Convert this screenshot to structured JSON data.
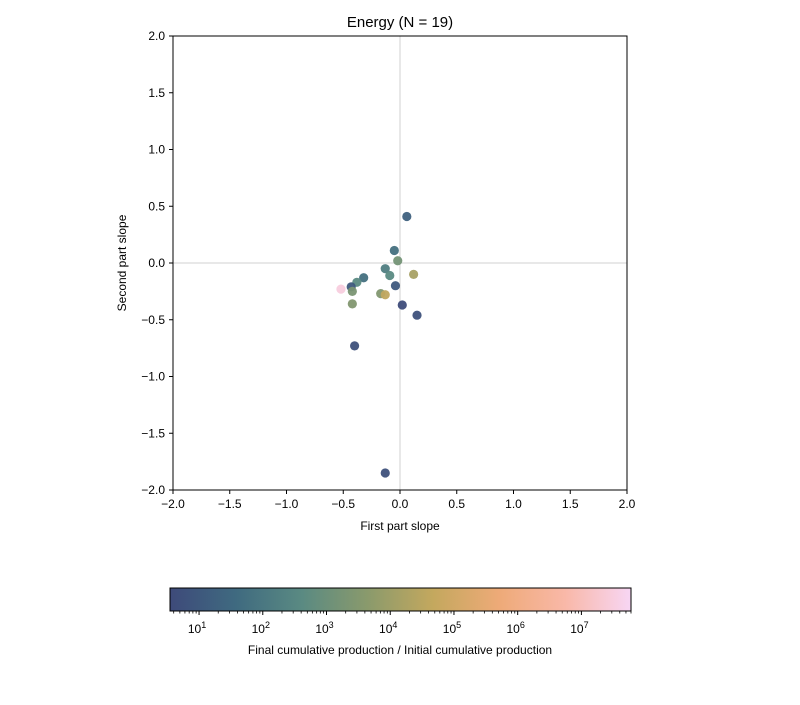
{
  "chart_data": {
    "type": "scatter",
    "title": "Energy (N = 19)",
    "xlabel": "First part slope",
    "ylabel": "Second part slope",
    "xlim": [
      -2.0,
      2.0
    ],
    "ylim": [
      -2.0,
      2.0
    ],
    "xticks": [
      "−2.0",
      "−1.5",
      "−1.0",
      "−0.5",
      "0.0",
      "0.5",
      "1.0",
      "1.5",
      "2.0"
    ],
    "yticks": [
      "2.0",
      "1.5",
      "1.0",
      "0.5",
      "0.0",
      "−0.5",
      "−1.0",
      "−1.5",
      "−2.0"
    ],
    "reference_lines": {
      "x": 0,
      "y": 0
    },
    "grid": false,
    "points": [
      {
        "x": 0.06,
        "y": 0.41,
        "c": 20
      },
      {
        "x": -0.05,
        "y": 0.11,
        "c": 60
      },
      {
        "x": -0.02,
        "y": 0.02,
        "c": 1500
      },
      {
        "x": -0.13,
        "y": -0.05,
        "c": 150
      },
      {
        "x": -0.09,
        "y": -0.11,
        "c": 400
      },
      {
        "x": 0.12,
        "y": -0.1,
        "c": 15000
      },
      {
        "x": -0.32,
        "y": -0.13,
        "c": 60
      },
      {
        "x": -0.38,
        "y": -0.17,
        "c": 400
      },
      {
        "x": -0.43,
        "y": -0.21,
        "c": 10
      },
      {
        "x": -0.04,
        "y": -0.2,
        "c": 10
      },
      {
        "x": -0.42,
        "y": -0.25,
        "c": 2000
      },
      {
        "x": -0.17,
        "y": -0.27,
        "c": 3000
      },
      {
        "x": -0.13,
        "y": -0.28,
        "c": 40000
      },
      {
        "x": -0.52,
        "y": -0.23,
        "c": 30000000
      },
      {
        "x": -0.42,
        "y": -0.36,
        "c": 3000
      },
      {
        "x": 0.02,
        "y": -0.37,
        "c": 4
      },
      {
        "x": 0.15,
        "y": -0.46,
        "c": 6
      },
      {
        "x": -0.4,
        "y": -0.73,
        "c": 6
      },
      {
        "x": -0.13,
        "y": -1.85,
        "c": 6
      }
    ],
    "colorbar": {
      "label": "Final cumulative production / Initial cumulative production",
      "scale": "log",
      "range": [
        3.5,
        60000000
      ],
      "tick_labels": [
        {
          "base": "10",
          "exp": "1"
        },
        {
          "base": "10",
          "exp": "2"
        },
        {
          "base": "10",
          "exp": "3"
        },
        {
          "base": "10",
          "exp": "4"
        },
        {
          "base": "10",
          "exp": "5"
        },
        {
          "base": "10",
          "exp": "6"
        },
        {
          "base": "10",
          "exp": "7"
        }
      ],
      "colormap": [
        "#3e4a7a",
        "#3f6a80",
        "#5a8a82",
        "#8a9a6c",
        "#c4a85e",
        "#eeaa78",
        "#f9b8a8",
        "#f7d6f4"
      ]
    }
  }
}
